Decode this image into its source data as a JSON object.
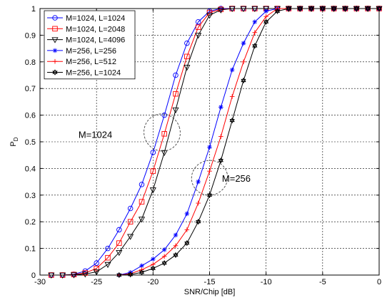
{
  "chart_data": {
    "type": "line",
    "xlabel": "SNR/Chip [dB]",
    "ylabel": "P",
    "ylabel_sub": "D",
    "xlim": [
      -30,
      0
    ],
    "ylim": [
      0,
      1
    ],
    "xticks": [
      -30,
      -25,
      -20,
      -15,
      -10,
      -5,
      0
    ],
    "yticks": [
      0,
      0.1,
      0.2,
      0.3,
      0.4,
      0.5,
      0.6,
      0.7,
      0.8,
      0.9,
      1
    ],
    "grid": true,
    "legend_position": "top-left",
    "series": [
      {
        "name": "M=1024, L=1024",
        "color": "#0000ff",
        "marker": "circle",
        "x": [
          -29,
          -28,
          -27,
          -26,
          -25,
          -24,
          -23,
          -22,
          -21,
          -20,
          -19,
          -18,
          -17,
          -16,
          -15,
          -14,
          -13,
          -12,
          -11,
          -10,
          -9,
          -8,
          -7,
          -6,
          -5,
          -4,
          -3,
          -2,
          -1,
          0
        ],
        "y": [
          0,
          0,
          0.003,
          0.015,
          0.045,
          0.1,
          0.17,
          0.25,
          0.34,
          0.46,
          0.6,
          0.75,
          0.87,
          0.95,
          0.99,
          1,
          1,
          1,
          1,
          1,
          1,
          1,
          1,
          1,
          1,
          1,
          1,
          1,
          1,
          1
        ]
      },
      {
        "name": "M=1024, L=2048",
        "color": "#ff0000",
        "marker": "square",
        "x": [
          -29,
          -28,
          -27,
          -26,
          -25,
          -24,
          -23,
          -22,
          -21,
          -20,
          -19,
          -18,
          -17,
          -16,
          -15,
          -14,
          -13,
          -12,
          -11,
          -10,
          -9,
          -8,
          -7,
          -6,
          -5,
          -4,
          -3,
          -2,
          -1,
          0
        ],
        "y": [
          0,
          0,
          0.002,
          0.008,
          0.025,
          0.065,
          0.12,
          0.2,
          0.275,
          0.39,
          0.53,
          0.68,
          0.82,
          0.93,
          0.985,
          0.997,
          1,
          1,
          1,
          1,
          1,
          1,
          1,
          1,
          1,
          1,
          1,
          1,
          1,
          1
        ]
      },
      {
        "name": "M=1024, L=4096",
        "color": "#000000",
        "marker": "triangle-down",
        "x": [
          -29,
          -28,
          -27,
          -26,
          -25,
          -24,
          -23,
          -22,
          -21,
          -20,
          -19,
          -18,
          -17,
          -16,
          -15,
          -14,
          -13,
          -12,
          -11,
          -10,
          -9,
          -8,
          -7,
          -6,
          -5,
          -4,
          -3,
          -2,
          -1,
          0
        ],
        "y": [
          0,
          0,
          0.001,
          0.004,
          0.012,
          0.04,
          0.085,
          0.145,
          0.21,
          0.32,
          0.46,
          0.62,
          0.78,
          0.9,
          0.975,
          0.995,
          1,
          1,
          1,
          1,
          1,
          1,
          1,
          1,
          1,
          1,
          1,
          1,
          1,
          1
        ]
      },
      {
        "name": "M=256, L=256",
        "color": "#0000ff",
        "marker": "star",
        "x": [
          -23,
          -22,
          -21,
          -20,
          -19,
          -18,
          -17,
          -16,
          -15,
          -14,
          -13,
          -12,
          -11,
          -10,
          -9,
          -8,
          -7,
          -6,
          -5,
          -4,
          -3,
          -2,
          -1,
          0
        ],
        "y": [
          0,
          0.01,
          0.035,
          0.06,
          0.095,
          0.15,
          0.23,
          0.35,
          0.48,
          0.63,
          0.77,
          0.87,
          0.95,
          0.99,
          1,
          1,
          1,
          1,
          1,
          1,
          1,
          1,
          1,
          1
        ]
      },
      {
        "name": "M=256, L=512",
        "color": "#ff0000",
        "marker": "plus",
        "x": [
          -23,
          -22,
          -21,
          -20,
          -19,
          -18,
          -17,
          -16,
          -15,
          -14,
          -13,
          -12,
          -11,
          -10,
          -9,
          -8,
          -7,
          -6,
          -5,
          -4,
          -3,
          -2,
          -1,
          0
        ],
        "y": [
          0,
          0.005,
          0.02,
          0.04,
          0.07,
          0.11,
          0.17,
          0.27,
          0.39,
          0.52,
          0.67,
          0.8,
          0.91,
          0.97,
          1,
          1,
          1,
          1,
          1,
          1,
          1,
          1,
          1,
          1
        ]
      },
      {
        "name": "M=256, L=1024",
        "color": "#000000",
        "marker": "hexagram",
        "x": [
          -23,
          -22,
          -21,
          -20,
          -19,
          -18,
          -17,
          -16,
          -15,
          -14,
          -13,
          -12,
          -11,
          -10,
          -9,
          -8,
          -7,
          -6,
          -5,
          -4,
          -3,
          -2,
          -1,
          0
        ],
        "y": [
          0,
          0.002,
          0.01,
          0.025,
          0.045,
          0.075,
          0.12,
          0.2,
          0.3,
          0.43,
          0.58,
          0.73,
          0.86,
          0.95,
          0.99,
          1,
          1,
          1,
          1,
          1,
          1,
          1,
          1,
          1
        ]
      }
    ],
    "annotations": [
      {
        "text": "M=1024",
        "x": -26.6,
        "y": 0.515,
        "ellipse": {
          "cx": -19.2,
          "cy": 0.535,
          "rx": 1.6,
          "ry": 0.07
        }
      },
      {
        "text": "M=256",
        "x": -13.9,
        "y": 0.35,
        "ellipse": {
          "cx": -15.0,
          "cy": 0.365,
          "rx": 1.6,
          "ry": 0.065
        }
      }
    ]
  }
}
